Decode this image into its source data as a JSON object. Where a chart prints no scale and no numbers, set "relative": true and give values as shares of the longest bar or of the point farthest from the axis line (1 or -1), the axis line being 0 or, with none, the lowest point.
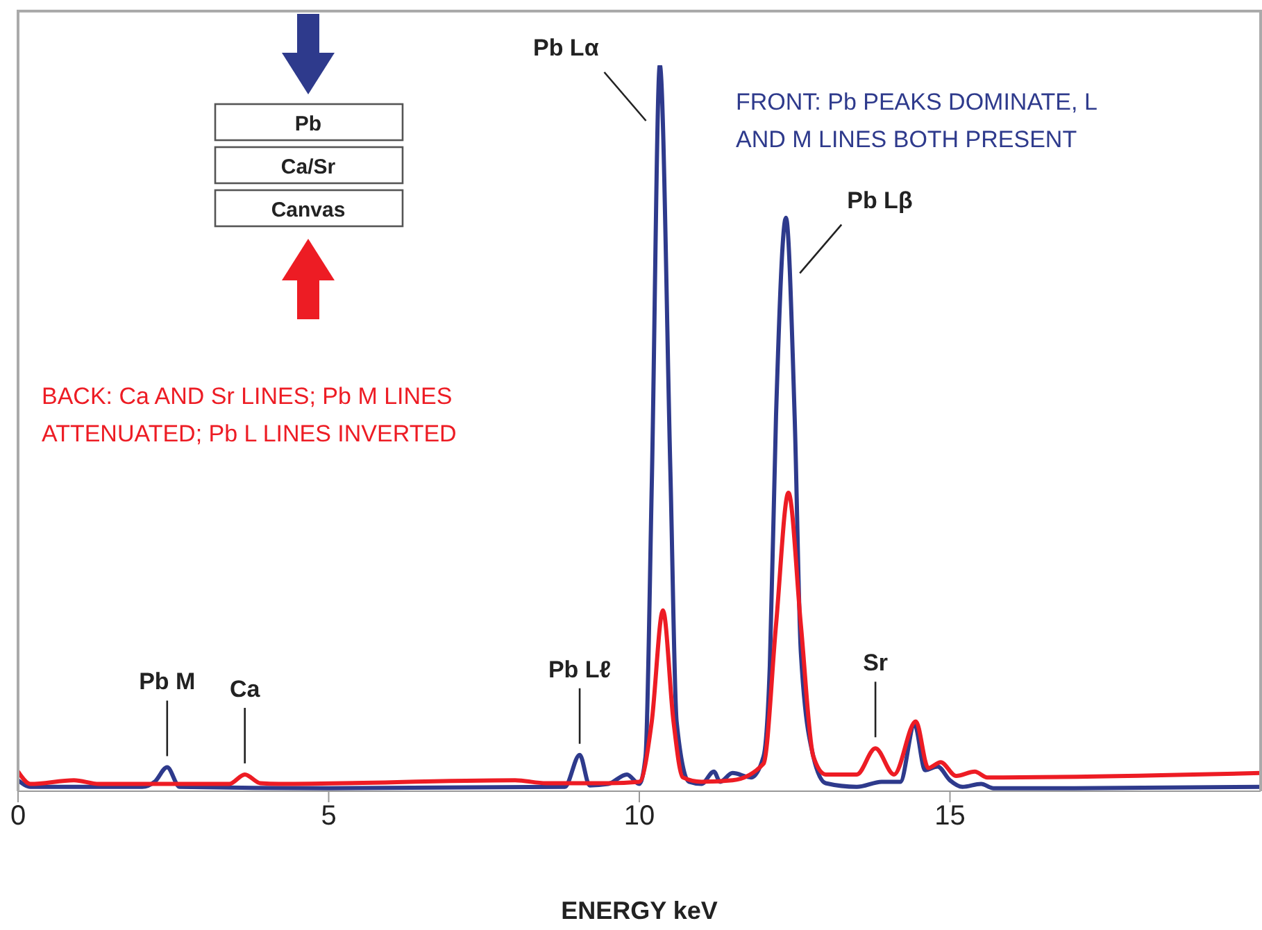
{
  "chart_data": {
    "type": "line",
    "relative": true,
    "xlabel": "ENERGY keV",
    "xlim": [
      0,
      20
    ],
    "xticks": [
      0,
      5,
      10,
      15
    ],
    "marker": "none",
    "line_style": "solid",
    "series": [
      {
        "name": "FRONT: Pb PEAKS DOMINATE, L AND M LINES BOTH PRESENT",
        "color": "#2e3a8c",
        "x": [
          0,
          0.2,
          2.0,
          2.2,
          2.4,
          2.6,
          5,
          8.8,
          9.04,
          9.2,
          9.5,
          9.8,
          10.0,
          10.1,
          10.2,
          10.33,
          10.5,
          10.6,
          10.8,
          11.0,
          11.2,
          11.3,
          11.5,
          11.8,
          12.0,
          12.1,
          12.2,
          12.36,
          12.5,
          12.6,
          12.8,
          13.0,
          13.5,
          13.9,
          14.2,
          14.43,
          14.6,
          14.8,
          15.0,
          15.2,
          15.5,
          15.7,
          17,
          20
        ],
        "values": [
          0.015,
          0.006,
          0.006,
          0.013,
          0.033,
          0.006,
          0.004,
          0.006,
          0.05,
          0.008,
          0.01,
          0.023,
          0.01,
          0.048,
          0.421,
          1.0,
          0.44,
          0.096,
          0.013,
          0.01,
          0.027,
          0.013,
          0.025,
          0.019,
          0.048,
          0.172,
          0.516,
          0.79,
          0.516,
          0.191,
          0.048,
          0.011,
          0.006,
          0.013,
          0.013,
          0.092,
          0.029,
          0.034,
          0.015,
          0.006,
          0.01,
          0.004,
          0.004,
          0.006
        ]
      },
      {
        "name": "BACK: Ca AND Sr LINES; Pb M LINES ATTENUATED; Pb L LINES INVERTED",
        "color": "#ed1c24",
        "x": [
          0,
          0.2,
          0.9,
          1.3,
          3.4,
          3.65,
          3.9,
          4.2,
          8.0,
          8.5,
          9.0,
          9.5,
          10.0,
          10.2,
          10.38,
          10.55,
          10.7,
          11.0,
          11.5,
          12.0,
          12.2,
          12.4,
          12.6,
          12.8,
          13.0,
          13.5,
          13.8,
          14.1,
          14.45,
          14.65,
          14.85,
          15.1,
          15.4,
          15.6,
          20
        ],
        "values": [
          0.027,
          0.01,
          0.015,
          0.01,
          0.01,
          0.023,
          0.011,
          0.01,
          0.015,
          0.011,
          0.011,
          0.011,
          0.013,
          0.096,
          0.249,
          0.096,
          0.019,
          0.013,
          0.015,
          0.038,
          0.229,
          0.411,
          0.229,
          0.048,
          0.023,
          0.023,
          0.059,
          0.023,
          0.096,
          0.032,
          0.04,
          0.021,
          0.027,
          0.019,
          0.025
        ]
      }
    ],
    "annotations": [
      {
        "text": "Pb M",
        "x": 2.4,
        "y": 0.033
      },
      {
        "text": "Ca",
        "x": 3.65,
        "y": 0.023
      },
      {
        "text": "Pb Lℓ",
        "x": 9.04,
        "y": 0.05
      },
      {
        "text": "Pb Lα",
        "x": 10.33,
        "y": 1.0
      },
      {
        "text": "Pb Lβ",
        "x": 12.36,
        "y": 0.79
      },
      {
        "text": "Sr",
        "x": 13.8,
        "y": 0.059
      },
      "Pb",
      "Ca/Sr",
      "Canvas"
    ]
  }
}
